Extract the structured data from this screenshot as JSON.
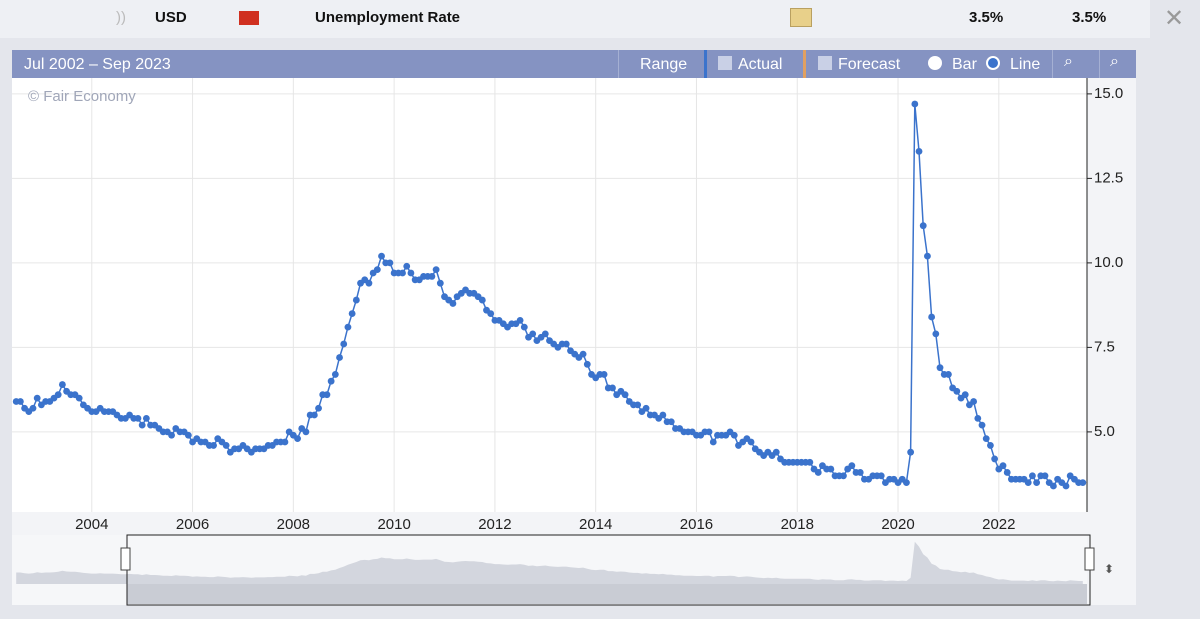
{
  "header": {
    "currency": "USD",
    "title": "Unemployment Rate",
    "values": [
      "3.5%",
      "3.5%"
    ]
  },
  "toolbar": {
    "range_label": "Jul 2002 – Sep 2023",
    "buttons": [
      "Range",
      "Actual",
      "Forecast",
      "Bar",
      "Line"
    ]
  },
  "watermark": "© Fair Economy",
  "chart_data": {
    "type": "line",
    "color": "#3b73cc",
    "grid": true,
    "markers": true,
    "x": [
      "2002-07",
      "2002-08",
      "2002-09",
      "2002-10",
      "2002-11",
      "2002-12",
      "2003-01",
      "2003-02",
      "2003-03",
      "2003-04",
      "2003-05",
      "2003-06",
      "2003-07",
      "2003-08",
      "2003-09",
      "2003-10",
      "2003-11",
      "2003-12",
      "2004-01",
      "2004-02",
      "2004-03",
      "2004-04",
      "2004-05",
      "2004-06",
      "2004-07",
      "2004-08",
      "2004-09",
      "2004-10",
      "2004-11",
      "2004-12",
      "2005-01",
      "2005-02",
      "2005-03",
      "2005-04",
      "2005-05",
      "2005-06",
      "2005-07",
      "2005-08",
      "2005-09",
      "2005-10",
      "2005-11",
      "2005-12",
      "2006-01",
      "2006-02",
      "2006-03",
      "2006-04",
      "2006-05",
      "2006-06",
      "2006-07",
      "2006-08",
      "2006-09",
      "2006-10",
      "2006-11",
      "2006-12",
      "2007-01",
      "2007-02",
      "2007-03",
      "2007-04",
      "2007-05",
      "2007-06",
      "2007-07",
      "2007-08",
      "2007-09",
      "2007-10",
      "2007-11",
      "2007-12",
      "2008-01",
      "2008-02",
      "2008-03",
      "2008-04",
      "2008-05",
      "2008-06",
      "2008-07",
      "2008-08",
      "2008-09",
      "2008-10",
      "2008-11",
      "2008-12",
      "2009-01",
      "2009-02",
      "2009-03",
      "2009-04",
      "2009-05",
      "2009-06",
      "2009-07",
      "2009-08",
      "2009-09",
      "2009-10",
      "2009-11",
      "2009-12",
      "2010-01",
      "2010-02",
      "2010-03",
      "2010-04",
      "2010-05",
      "2010-06",
      "2010-07",
      "2010-08",
      "2010-09",
      "2010-10",
      "2010-11",
      "2010-12",
      "2011-01",
      "2011-02",
      "2011-03",
      "2011-04",
      "2011-05",
      "2011-06",
      "2011-07",
      "2011-08",
      "2011-09",
      "2011-10",
      "2011-11",
      "2011-12",
      "2012-01",
      "2012-02",
      "2012-03",
      "2012-04",
      "2012-05",
      "2012-06",
      "2012-07",
      "2012-08",
      "2012-09",
      "2012-10",
      "2012-11",
      "2012-12",
      "2013-01",
      "2013-02",
      "2013-03",
      "2013-04",
      "2013-05",
      "2013-06",
      "2013-07",
      "2013-08",
      "2013-09",
      "2013-10",
      "2013-11",
      "2013-12",
      "2014-01",
      "2014-02",
      "2014-03",
      "2014-04",
      "2014-05",
      "2014-06",
      "2014-07",
      "2014-08",
      "2014-09",
      "2014-10",
      "2014-11",
      "2014-12",
      "2015-01",
      "2015-02",
      "2015-03",
      "2015-04",
      "2015-05",
      "2015-06",
      "2015-07",
      "2015-08",
      "2015-09",
      "2015-10",
      "2015-11",
      "2015-12",
      "2016-01",
      "2016-02",
      "2016-03",
      "2016-04",
      "2016-05",
      "2016-06",
      "2016-07",
      "2016-08",
      "2016-09",
      "2016-10",
      "2016-11",
      "2016-12",
      "2017-01",
      "2017-02",
      "2017-03",
      "2017-04",
      "2017-05",
      "2017-06",
      "2017-07",
      "2017-08",
      "2017-09",
      "2017-10",
      "2017-11",
      "2017-12",
      "2018-01",
      "2018-02",
      "2018-03",
      "2018-04",
      "2018-05",
      "2018-06",
      "2018-07",
      "2018-08",
      "2018-09",
      "2018-10",
      "2018-11",
      "2018-12",
      "2019-01",
      "2019-02",
      "2019-03",
      "2019-04",
      "2019-05",
      "2019-06",
      "2019-07",
      "2019-08",
      "2019-09",
      "2019-10",
      "2019-11",
      "2019-12",
      "2020-01",
      "2020-02",
      "2020-03",
      "2020-04",
      "2020-05",
      "2020-06",
      "2020-07",
      "2020-08",
      "2020-09",
      "2020-10",
      "2020-11",
      "2020-12",
      "2021-01",
      "2021-02",
      "2021-03",
      "2021-04",
      "2021-05",
      "2021-06",
      "2021-07",
      "2021-08",
      "2021-09",
      "2021-10",
      "2021-11",
      "2021-12",
      "2022-01",
      "2022-02",
      "2022-03",
      "2022-04",
      "2022-05",
      "2022-06",
      "2022-07",
      "2022-08",
      "2022-09",
      "2022-10",
      "2022-11",
      "2022-12",
      "2023-01",
      "2023-02",
      "2023-03",
      "2023-04",
      "2023-05",
      "2023-06",
      "2023-07",
      "2023-08",
      "2023-09"
    ],
    "values": [
      5.9,
      5.9,
      5.7,
      5.6,
      5.7,
      6.0,
      5.8,
      5.9,
      5.9,
      6.0,
      6.1,
      6.4,
      6.2,
      6.1,
      6.1,
      6.0,
      5.8,
      5.7,
      5.6,
      5.6,
      5.7,
      5.6,
      5.6,
      5.6,
      5.5,
      5.4,
      5.4,
      5.5,
      5.4,
      5.4,
      5.2,
      5.4,
      5.2,
      5.2,
      5.1,
      5.0,
      5.0,
      4.9,
      5.1,
      5.0,
      5.0,
      4.9,
      4.7,
      4.8,
      4.7,
      4.7,
      4.6,
      4.6,
      4.8,
      4.7,
      4.6,
      4.4,
      4.5,
      4.5,
      4.6,
      4.5,
      4.4,
      4.5,
      4.5,
      4.5,
      4.6,
      4.6,
      4.7,
      4.7,
      4.7,
      5.0,
      4.9,
      4.8,
      5.1,
      5.0,
      5.5,
      5.5,
      5.7,
      6.1,
      6.1,
      6.5,
      6.7,
      7.2,
      7.6,
      8.1,
      8.5,
      8.9,
      9.4,
      9.5,
      9.4,
      9.7,
      9.8,
      10.2,
      10.0,
      10.0,
      9.7,
      9.7,
      9.7,
      9.9,
      9.7,
      9.5,
      9.5,
      9.6,
      9.6,
      9.6,
      9.8,
      9.4,
      9.0,
      8.9,
      8.8,
      9.0,
      9.1,
      9.2,
      9.1,
      9.1,
      9.0,
      8.9,
      8.6,
      8.5,
      8.3,
      8.3,
      8.2,
      8.1,
      8.2,
      8.2,
      8.3,
      8.1,
      7.8,
      7.9,
      7.7,
      7.8,
      7.9,
      7.7,
      7.6,
      7.5,
      7.6,
      7.6,
      7.4,
      7.3,
      7.2,
      7.3,
      7.0,
      6.7,
      6.6,
      6.7,
      6.7,
      6.3,
      6.3,
      6.1,
      6.2,
      6.1,
      5.9,
      5.8,
      5.8,
      5.6,
      5.7,
      5.5,
      5.5,
      5.4,
      5.5,
      5.3,
      5.3,
      5.1,
      5.1,
      5.0,
      5.0,
      5.0,
      4.9,
      4.9,
      5.0,
      5.0,
      4.7,
      4.9,
      4.9,
      4.9,
      5.0,
      4.9,
      4.6,
      4.7,
      4.8,
      4.7,
      4.5,
      4.4,
      4.3,
      4.4,
      4.3,
      4.4,
      4.2,
      4.1,
      4.1,
      4.1,
      4.1,
      4.1,
      4.1,
      4.1,
      3.9,
      3.8,
      4.0,
      3.9,
      3.9,
      3.7,
      3.7,
      3.7,
      3.9,
      4.0,
      3.8,
      3.8,
      3.6,
      3.6,
      3.7,
      3.7,
      3.7,
      3.5,
      3.6,
      3.6,
      3.5,
      3.6,
      3.5,
      4.4,
      14.7,
      13.3,
      11.1,
      10.2,
      8.4,
      7.9,
      6.9,
      6.7,
      6.7,
      6.3,
      6.2,
      6.0,
      6.1,
      5.8,
      5.9,
      5.4,
      5.2,
      4.8,
      4.6,
      4.2,
      3.9,
      4.0,
      3.8,
      3.6,
      3.6,
      3.6,
      3.6,
      3.5,
      3.7,
      3.5,
      3.7,
      3.7,
      3.5,
      3.4,
      3.6,
      3.5,
      3.4,
      3.7,
      3.6,
      3.5,
      3.5
    ],
    "xlim": [
      "2002-06",
      "2023-10"
    ],
    "xticks": [
      "2004",
      "2006",
      "2008",
      "2010",
      "2012",
      "2014",
      "2016",
      "2018",
      "2020",
      "2022"
    ],
    "ylim": [
      2.63,
      15.47
    ],
    "yticks": [
      {
        "value": 5,
        "label": "5.0"
      },
      {
        "value": 7.5,
        "label": "7.5"
      },
      {
        "value": 10,
        "label": "10.0"
      },
      {
        "value": 12.5,
        "label": "12.5"
      },
      {
        "value": 15,
        "label": "15.0"
      }
    ]
  }
}
